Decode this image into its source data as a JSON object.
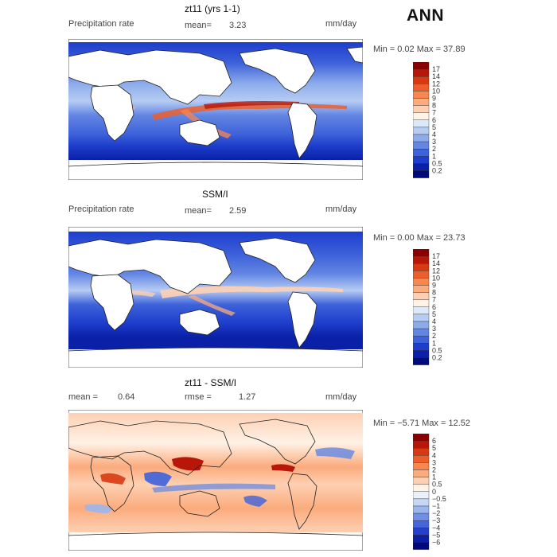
{
  "season": "ANN",
  "panels": [
    {
      "title": "zt11 (yrs 1-1)",
      "field_label": "Precipitation rate",
      "stat1_label": "mean=",
      "stat1_value": "3.23",
      "stat2_label": "",
      "stat2_value": "",
      "units": "mm/day",
      "minmax": "Min =    0.02 Max =   37.89",
      "colorbar": {
        "levels": [
          "17",
          "14",
          "12",
          "10",
          "9",
          "8",
          "7",
          "6",
          "5",
          "4",
          "3",
          "2",
          "1",
          "0.5",
          "0.2"
        ],
        "colors": [
          "#8b0000",
          "#b81608",
          "#d73a12",
          "#ec5f2c",
          "#f7864f",
          "#fbab7c",
          "#fdd0b3",
          "#fff2e6",
          "#dce9fb",
          "#b6ccf3",
          "#8cabeb",
          "#6386e3",
          "#3e62da",
          "#1d3dcc",
          "#0a20a6",
          "#000a78"
        ]
      }
    },
    {
      "title": "SSM/I",
      "field_label": "Precipitation rate",
      "stat1_label": "mean=",
      "stat1_value": "2.59",
      "stat2_label": "",
      "stat2_value": "",
      "units": "mm/day",
      "minmax": "Min =    0.00 Max =   23.73",
      "colorbar": {
        "levels": [
          "17",
          "14",
          "12",
          "10",
          "9",
          "8",
          "7",
          "6",
          "5",
          "4",
          "3",
          "2",
          "1",
          "0.5",
          "0.2"
        ],
        "colors": [
          "#8b0000",
          "#b81608",
          "#d73a12",
          "#ec5f2c",
          "#f7864f",
          "#fbab7c",
          "#fdd0b3",
          "#fff2e6",
          "#dce9fb",
          "#b6ccf3",
          "#8cabeb",
          "#6386e3",
          "#3e62da",
          "#1d3dcc",
          "#0a20a6",
          "#000a78"
        ]
      }
    },
    {
      "title": "zt11 - SSM/I",
      "field_label": "",
      "stat1_label": "mean =",
      "stat1_value": "0.64",
      "stat2_label": "rmse =",
      "stat2_value": "1.27",
      "units": "mm/day",
      "minmax": "Min =  −5.71 Max =   12.52",
      "colorbar": {
        "levels": [
          "6",
          "5",
          "4",
          "3",
          "2",
          "1",
          "0.5",
          "0",
          "−0.5",
          "−1",
          "−2",
          "−3",
          "−4",
          "−5",
          "−6"
        ],
        "colors": [
          "#8b0000",
          "#b81608",
          "#d73a12",
          "#ec5f2c",
          "#f7864f",
          "#fbab7c",
          "#fdd0b3",
          "#fff2e6",
          "#eaf1fc",
          "#c6d8f6",
          "#9bb6ee",
          "#6f8fe5",
          "#4866dc",
          "#2540cc",
          "#0c1fa3",
          "#00087a"
        ]
      }
    }
  ]
}
